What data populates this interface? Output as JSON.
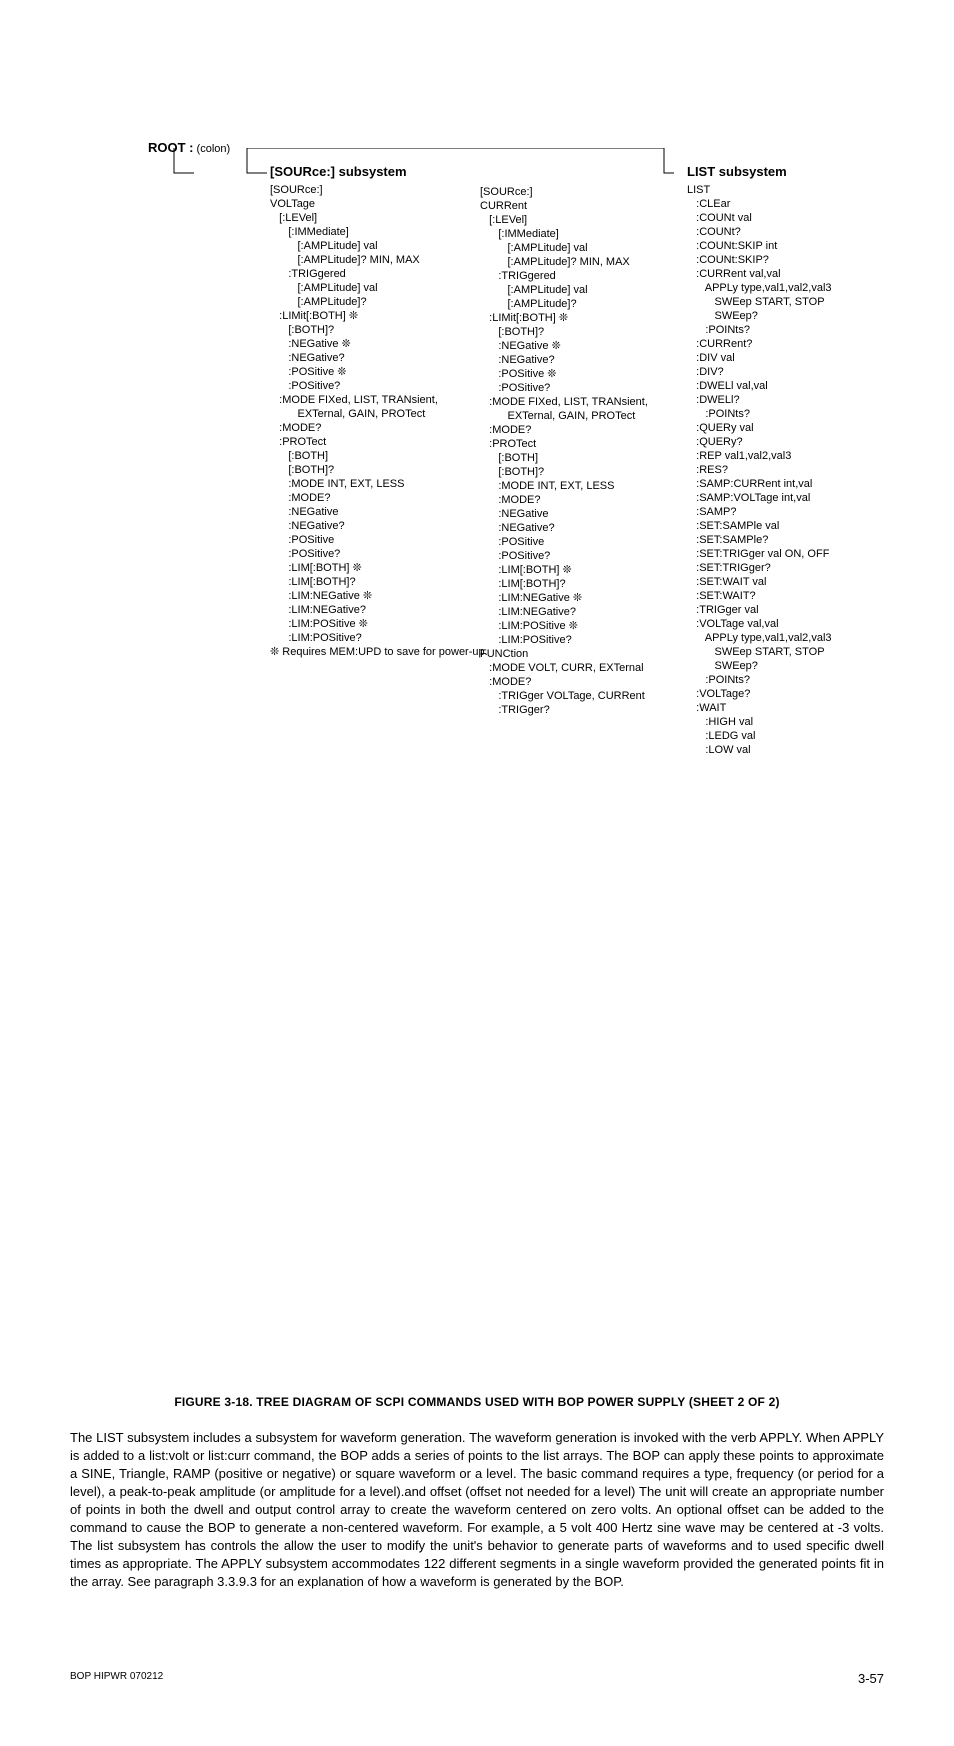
{
  "root": {
    "bold": "ROOT :",
    "plain": " (colon)"
  },
  "col1": {
    "title": "[SOURce:] subsystem",
    "lines": [
      "[SOURce:]",
      "VOLTage",
      "   [:LEVel]",
      "      [:IMMediate]",
      "         [:AMPLitude] val",
      "         [:AMPLitude]? MIN, MAX",
      "      :TRIGgered",
      "         [:AMPLitude] val",
      "         [:AMPLitude]?",
      "   :LIMit[:BOTH] ❊",
      "      [:BOTH]?",
      "      :NEGative ❊",
      "      :NEGative?",
      "      :POSitive ❊",
      "      :POSitive?",
      "   :MODE FIXed, LIST, TRANsient,",
      "         EXTernal, GAIN, PROTect",
      "   :MODE?",
      "   :PROTect",
      "      [:BOTH]",
      "      [:BOTH]?",
      "      :MODE INT, EXT, LESS",
      "      :MODE?",
      "      :NEGative",
      "      :NEGative?",
      "      :POSitive",
      "      :POSitive?",
      "      :LIM[:BOTH] ❊",
      "      :LIM[:BOTH]?",
      "      :LIM:NEGative ❊",
      "      :LIM:NEGative?",
      "      :LIM:POSitive ❊",
      "      :LIM:POSitive?"
    ]
  },
  "col2": {
    "lines": [
      "[SOURce:]",
      "CURRent",
      "   [:LEVel]",
      "      [:IMMediate]",
      "         [:AMPLitude] val",
      "         [:AMPLitude]? MIN, MAX",
      "      :TRIGgered",
      "         [:AMPLitude] val",
      "         [:AMPLitude]?",
      "   :LIMit[:BOTH] ❊",
      "      [:BOTH]?",
      "      :NEGative ❊",
      "      :NEGative?",
      "      :POSitive ❊",
      "      :POSitive?",
      "   :MODE FIXed, LIST, TRANsient,",
      "         EXTernal, GAIN, PROTect",
      "   :MODE?",
      "   :PROTect",
      "      [:BOTH]",
      "      [:BOTH]?",
      "      :MODE INT, EXT, LESS",
      "      :MODE?",
      "      :NEGative",
      "      :NEGative?",
      "      :POSitive",
      "      :POSitive?",
      "      :LIM[:BOTH] ❊",
      "      :LIM[:BOTH]?",
      "      :LIM:NEGative ❊",
      "      :LIM:NEGative?",
      "      :LIM:POSitive ❊",
      "      :LIM:POSitive?",
      "FUNCtion",
      "   :MODE VOLT, CURR, EXTernal",
      "   :MODE?",
      "      :TRIGger VOLTage, CURRent",
      "      :TRIGger?"
    ]
  },
  "col3": {
    "title": "LIST subsystem",
    "lines": [
      "LIST",
      "   :CLEar",
      "   :COUNt val",
      "   :COUNt?",
      "   :COUNt:SKIP int",
      "   :COUNt:SKIP?",
      "   :CURRent val,val",
      "      APPLy type,val1,val2,val3",
      "         SWEep START, STOP",
      "         SWEep?",
      "      :POINts?",
      "   :CURRent?",
      "   :DIV val",
      "   :DIV?",
      "   :DWELl val,val",
      "   :DWELl?",
      "      :POINts?",
      "   :QUERy val",
      "   :QUERy?",
      "   :REP val1,val2,val3",
      "   :RES?",
      "   :SAMP:CURRent int,val",
      "   :SAMP:VOLTage int,val",
      "   :SAMP?",
      "   :SET:SAMPle val",
      "   :SET:SAMPle?",
      "   :SET:TRIGger val ON, OFF",
      "   :SET:TRIGger?",
      "   :SET:WAIT val",
      "   :SET:WAIT?",
      "   :TRIGger val",
      "   :VOLTage val,val",
      "      APPLy type,val1,val2,val3",
      "         SWEep START, STOP",
      "         SWEep?",
      "      :POINts?",
      "   :VOLTage?",
      "   :WAIT",
      "      :HIGH val",
      "      :LEDG val",
      "      :LOW val"
    ]
  },
  "footnote_req": "❊ Requires MEM:UPD to save for power-up.",
  "caption": "FIGURE 3-18.    TREE DIAGRAM OF SCPI COMMANDS USED WITH BOP POWER SUPPLY (SHEET 2 OF 2)",
  "body": "The LIST subsystem includes a subsystem for waveform generation. The waveform generation is invoked with the verb APPLY. When APPLY is added to a list:volt or list:curr command, the BOP adds a series of points to the list arrays. The BOP can apply these points to approximate a SINE, Triangle, RAMP (positive or negative) or square waveform or a level. The basic command requires a type, frequency (or period for a level), a peak-to-peak amplitude (or amplitude for a level).and offset (offset not needed for a level) The unit will create an appropriate number of points in both the dwell and output control array to create the waveform centered on zero volts. An optional offset can be added to the command to cause the BOP to generate a non-centered waveform. For example, a 5 volt 400 Hertz sine wave may be centered at -3 volts. The list subsystem has controls the allow the user to modify the unit's behavior to generate parts of waveforms and to used specific dwell times as appropriate. The APPLY subsystem accommodates 122 different segments in a single waveform provided the generated points fit in the array. See paragraph 3.3.9.3 for an explanation of how a waveform is generated by the BOP.",
  "footer": {
    "left": "BOP HIPWR 070212",
    "right": "3-57"
  },
  "lines_svg": {
    "stroke": "#000000",
    "stroke_width": 1,
    "paths": [
      "M 97 0 L 514 0",
      "M 24 0 L 24 25 L 44 25",
      "M 97 0 L 97 25 L 117 25",
      "M 514 0 L 514 25 L 524 25"
    ]
  }
}
